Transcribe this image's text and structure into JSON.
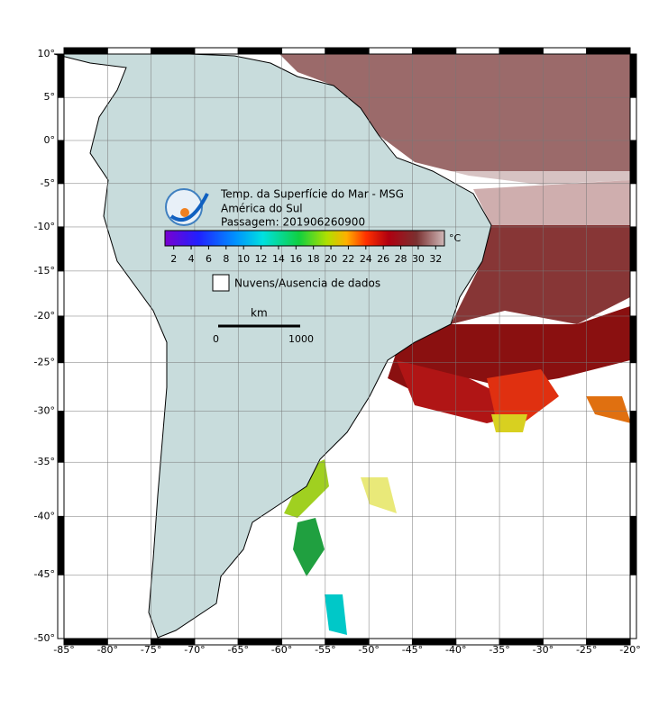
{
  "map": {
    "title": "Temp. da Superfície do Mar - MSG",
    "subtitle": "América do Sul",
    "pass": "Passagem: 201906260900",
    "xlim": [
      -85,
      -20
    ],
    "ylim": [
      -50,
      10
    ],
    "xticks": [
      {
        "value": -85,
        "label": "-85°"
      },
      {
        "value": -80,
        "label": "-80°"
      },
      {
        "value": -75,
        "label": "-75°"
      },
      {
        "value": -70,
        "label": "-70°"
      },
      {
        "value": -65,
        "label": "-65°"
      },
      {
        "value": -60,
        "label": "-60°"
      },
      {
        "value": -55,
        "label": "-55°"
      },
      {
        "value": -50,
        "label": "-50°"
      },
      {
        "value": -45,
        "label": "-45°"
      },
      {
        "value": -40,
        "label": "-40°"
      },
      {
        "value": -35,
        "label": "-35°"
      },
      {
        "value": -30,
        "label": "-30°"
      },
      {
        "value": -25,
        "label": "-25°"
      },
      {
        "value": -20,
        "label": "-20°"
      }
    ],
    "yticks": [
      {
        "value": 10,
        "label": "10°"
      },
      {
        "value": 5,
        "label": "5°"
      },
      {
        "value": 0,
        "label": "0°"
      },
      {
        "value": -5,
        "label": "-5°"
      },
      {
        "value": -10,
        "label": "-10°"
      },
      {
        "value": -15,
        "label": "-15°"
      },
      {
        "value": -20,
        "label": "-20°"
      },
      {
        "value": -25,
        "label": "-25°"
      },
      {
        "value": -30,
        "label": "-30°"
      },
      {
        "value": -35,
        "label": "-35°"
      },
      {
        "value": -40,
        "label": "-40°"
      },
      {
        "value": -45,
        "label": "-45°"
      },
      {
        "value": -50,
        "label": "-50°"
      }
    ],
    "colorbar": {
      "lim": [
        1,
        33
      ],
      "ticks": [
        2,
        4,
        6,
        8,
        10,
        12,
        14,
        16,
        18,
        20,
        22,
        24,
        26,
        28,
        30,
        32
      ],
      "unit": "°C"
    },
    "legend": "Nuvens/Ausencia de dados",
    "scale": {
      "unit": "km",
      "start": "0",
      "end": "1000"
    }
  }
}
